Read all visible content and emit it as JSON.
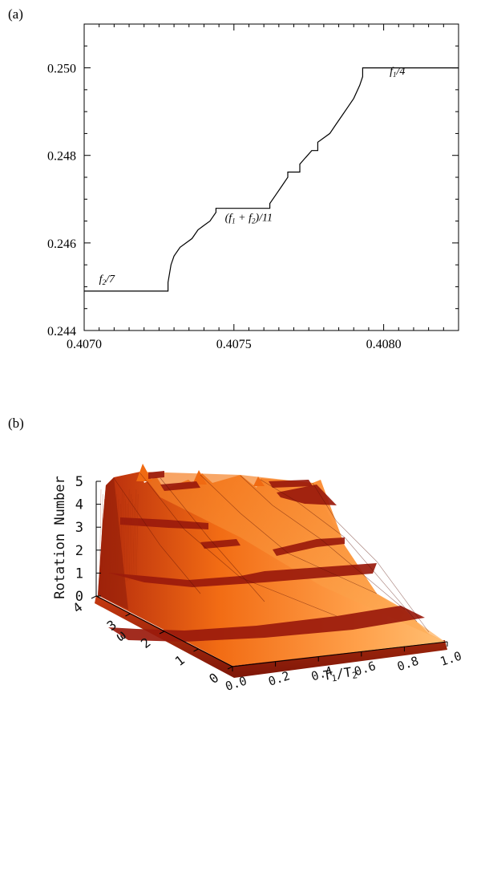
{
  "panels": [
    "(a)",
    "(b)"
  ],
  "chart_data": [
    {
      "type": "line",
      "panel": "(a)",
      "xlim": [
        0.407,
        0.40825
      ],
      "ylim": [
        0.244,
        0.251
      ],
      "x_ticks": [
        "0.4070",
        "0.4075",
        "0.4080"
      ],
      "x_tick_values": [
        0.407,
        0.4075,
        0.408
      ],
      "y_ticks": [
        "0.244",
        "0.246",
        "0.248",
        "0.250"
      ],
      "y_tick_values": [
        0.244,
        0.246,
        0.248,
        0.25
      ],
      "series": [
        {
          "x": [
            0.407,
            0.40728,
            0.40728,
            0.40729,
            0.4073,
            0.40732,
            0.40734,
            0.40736,
            0.40738,
            0.4074,
            0.40742,
            0.40744,
            0.40744,
            0.40762,
            0.40762,
            0.40764,
            0.40766,
            0.40768,
            0.40768,
            0.40772,
            0.40772,
            0.40776,
            0.40778,
            0.40778,
            0.40782,
            0.40784,
            0.40786,
            0.40788,
            0.4079,
            0.40792,
            0.40793,
            0.40793,
            0.40825
          ],
          "y": [
            0.2449,
            0.2449,
            0.2451,
            0.2455,
            0.2457,
            0.2459,
            0.246,
            0.2461,
            0.2463,
            0.2464,
            0.2465,
            0.2467,
            0.24679,
            0.24679,
            0.2469,
            0.2471,
            0.2473,
            0.2475,
            0.24762,
            0.24762,
            0.2478,
            0.24811,
            0.24811,
            0.2483,
            0.2485,
            0.2487,
            0.2489,
            0.2491,
            0.2493,
            0.2496,
            0.2498,
            0.25,
            0.25
          ]
        }
      ],
      "annotations": [
        {
          "text": "f",
          "sub": "2",
          "rest": "/7",
          "x": 0.40705,
          "y": 0.2451
        },
        {
          "text": "(f",
          "sub": "1",
          "rest": " + f",
          "sub2": "2",
          "rest2": ")/11",
          "x": 0.40747,
          "y": 0.2465
        },
        {
          "text": "f",
          "sub": "1",
          "rest": "/4",
          "x": 0.40802,
          "y": 0.24985
        }
      ]
    },
    {
      "type": "surface3d",
      "panel": "(b)",
      "zlabel": "Rotation Number",
      "xlabel": "T",
      "xlabel_sub1": "1",
      "xlabel_mid": "/T",
      "xlabel_sub2": "2",
      "ylabel": "ω",
      "xlim": [
        0.0,
        1.0
      ],
      "ylim": [
        0,
        4
      ],
      "zlim": [
        0,
        5
      ],
      "x_ticks": [
        "0.0",
        "0.2",
        "0.4",
        "0.6",
        "0.8",
        "1.0"
      ],
      "y_ticks": [
        "0",
        "1",
        "2",
        "3",
        "4"
      ],
      "z_ticks": [
        "0",
        "1",
        "2",
        "3",
        "4",
        "5"
      ],
      "colors": {
        "surface_light": "#ff9a3c",
        "surface_mid": "#f06a12",
        "surface_dark": "#8c1c0a",
        "plateau": "#9a1a0c"
      }
    }
  ]
}
